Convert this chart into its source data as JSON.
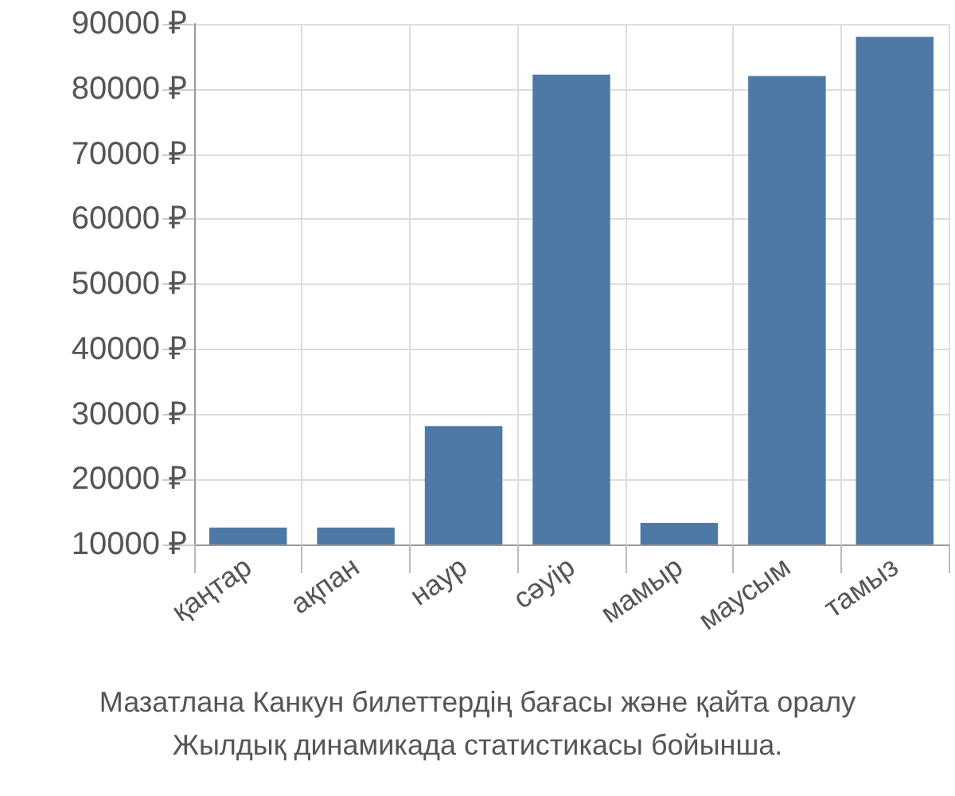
{
  "chart_data": {
    "type": "bar",
    "categories": [
      "қаңтар",
      "ақпан",
      "наур",
      "сәуір",
      "мамыр",
      "маусым",
      "тамыз"
    ],
    "values": [
      12600,
      12600,
      28200,
      82200,
      13300,
      82000,
      88000
    ],
    "color": "#4e79a7",
    "ylim": [
      10000,
      90000
    ],
    "yticks": [
      {
        "value": 10000,
        "label": "10000 ₽"
      },
      {
        "value": 20000,
        "label": "20000 ₽"
      },
      {
        "value": 30000,
        "label": "30000 ₽"
      },
      {
        "value": 40000,
        "label": "40000 ₽"
      },
      {
        "value": 50000,
        "label": "50000 ₽"
      },
      {
        "value": 60000,
        "label": "60000 ₽"
      },
      {
        "value": 70000,
        "label": "70000 ₽"
      },
      {
        "value": 80000,
        "label": "80000 ₽"
      },
      {
        "value": 90000,
        "label": "90000 ₽"
      }
    ],
    "grid": true,
    "annotations": [
      "Мазатлана Канкун билеттердің бағасы және қайта оралу",
      "Жылдық динамикада статистикасы бойынша."
    ]
  }
}
